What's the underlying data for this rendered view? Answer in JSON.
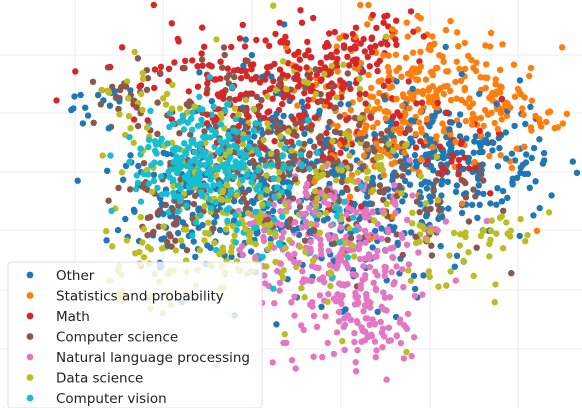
{
  "chart_data": {
    "type": "scatter",
    "title": "",
    "xlabel": "",
    "ylabel": "",
    "xlim": [
      0,
      100
    ],
    "ylim": [
      0,
      100
    ],
    "grid": true,
    "legend_position": "bottom-left",
    "series": [
      {
        "name": "Other",
        "color": "#1f77b4"
      },
      {
        "name": "Statistics and probability",
        "color": "#ff7f0e"
      },
      {
        "name": "Math",
        "color": "#d62728"
      },
      {
        "name": "Computer science",
        "color": "#8c564b"
      },
      {
        "name": "Natural language processing",
        "color": "#e377c2"
      },
      {
        "name": "Data science",
        "color": "#bcbd22"
      },
      {
        "name": "Computer vision",
        "color": "#17becf"
      }
    ]
  }
}
